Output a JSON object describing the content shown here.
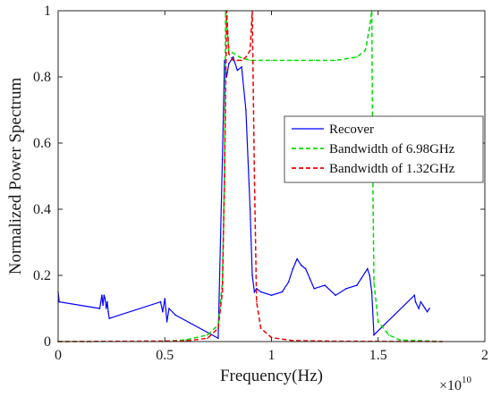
{
  "chart_data": {
    "type": "line",
    "title": "",
    "xlabel": "Frequency(Hz)",
    "ylabel": "Normalized Power Spectrum",
    "x_exponent_label": "×10",
    "x_exponent_power": "10",
    "xlim": [
      0,
      2
    ],
    "ylim": [
      0,
      1
    ],
    "x_ticks": [
      0,
      0.5,
      1,
      1.5,
      2
    ],
    "x_tick_labels": [
      "0",
      "0.5",
      "1",
      "1.5",
      "2"
    ],
    "y_ticks": [
      0,
      0.2,
      0.4,
      0.6,
      0.8,
      1
    ],
    "y_tick_labels": [
      "0",
      "0.2",
      "0.4",
      "0.6",
      "0.8",
      "1"
    ],
    "grid": false,
    "legend_position": "center-right",
    "series": [
      {
        "name": "Recover",
        "color": "#0000ff",
        "style": "solid",
        "x": [
          0,
          0.005,
          0.195,
          0.2,
          0.205,
          0.21,
          0.215,
          0.22,
          0.225,
          0.23,
          0.235,
          0.24,
          0.48,
          0.49,
          0.5,
          0.51,
          0.52,
          0.55,
          0.75,
          0.77,
          0.78,
          0.79,
          0.8,
          0.82,
          0.84,
          0.86,
          0.88,
          0.9,
          0.91,
          0.92,
          0.93,
          0.95,
          1.0,
          1.05,
          1.08,
          1.1,
          1.12,
          1.14,
          1.16,
          1.18,
          1.2,
          1.25,
          1.3,
          1.35,
          1.4,
          1.42,
          1.44,
          1.45,
          1.46,
          1.47,
          1.48,
          1.67,
          1.675,
          1.69,
          1.7,
          1.71,
          1.72,
          1.73,
          1.74
        ],
        "y": [
          0.15,
          0.12,
          0.1,
          0.12,
          0.14,
          0.11,
          0.14,
          0.13,
          0.1,
          0.12,
          0.09,
          0.07,
          0.12,
          0.09,
          0.13,
          0.06,
          0.1,
          0.08,
          0.01,
          0.55,
          0.85,
          0.8,
          0.84,
          0.86,
          0.82,
          0.83,
          0.7,
          0.4,
          0.2,
          0.15,
          0.16,
          0.15,
          0.14,
          0.15,
          0.18,
          0.22,
          0.25,
          0.23,
          0.22,
          0.19,
          0.16,
          0.17,
          0.14,
          0.16,
          0.17,
          0.19,
          0.21,
          0.22,
          0.2,
          0.15,
          0.02,
          0.14,
          0.12,
          0.1,
          0.12,
          0.11,
          0.1,
          0.09,
          0.1
        ]
      },
      {
        "name": "Bandwidth of 6.98GHz",
        "color": "#00dd00",
        "style": "dashed",
        "x": [
          0,
          0.5,
          0.6,
          0.7,
          0.75,
          0.77,
          0.78,
          0.785,
          0.8,
          0.85,
          0.9,
          1.0,
          1.1,
          1.2,
          1.3,
          1.4,
          1.44,
          1.46,
          1.47,
          1.475,
          1.48,
          1.5,
          1.55,
          1.6,
          1.8
        ],
        "y": [
          0,
          0.001,
          0.005,
          0.02,
          0.05,
          0.18,
          0.5,
          1.0,
          0.88,
          0.86,
          0.85,
          0.85,
          0.85,
          0.85,
          0.85,
          0.86,
          0.88,
          0.95,
          1.0,
          0.5,
          0.18,
          0.06,
          0.02,
          0.005,
          0.0
        ]
      },
      {
        "name": "Bandwidth of 1.32GHz",
        "color": "#ee0000",
        "style": "dashed",
        "x": [
          0,
          0.6,
          0.7,
          0.75,
          0.77,
          0.78,
          0.79,
          0.8,
          0.82,
          0.84,
          0.86,
          0.88,
          0.9,
          0.91,
          0.92,
          0.93,
          0.95,
          1.0,
          1.1,
          1.3,
          1.8
        ],
        "y": [
          0,
          0.002,
          0.01,
          0.04,
          0.15,
          0.5,
          1.0,
          0.87,
          0.85,
          0.85,
          0.85,
          0.86,
          0.88,
          1.0,
          0.5,
          0.12,
          0.04,
          0.012,
          0.003,
          0.001,
          0
        ]
      }
    ]
  }
}
